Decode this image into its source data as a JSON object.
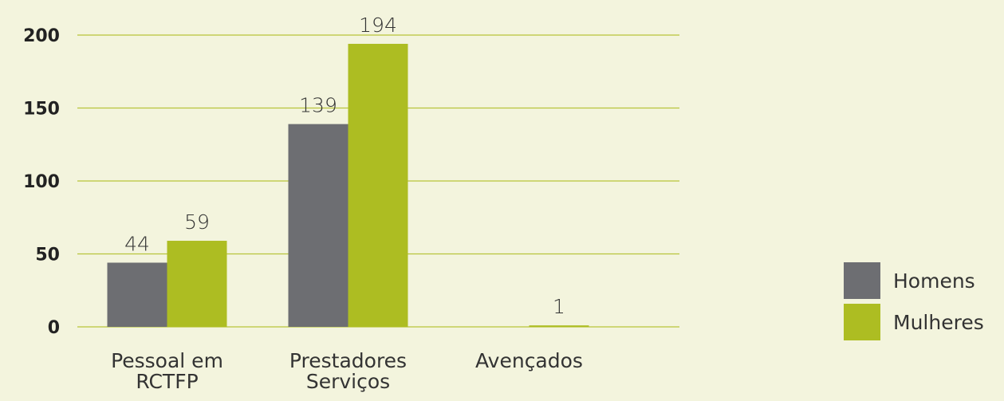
{
  "chart_data": {
    "type": "bar",
    "categories": [
      "Pessoal em\nRCTFP",
      "Prestadores\nServiços",
      "Avençados"
    ],
    "series": [
      {
        "name": "Homens",
        "color": "#6d6e72",
        "values": [
          44,
          139,
          null
        ]
      },
      {
        "name": "Mulheres",
        "color": "#adbd22",
        "values": [
          59,
          194,
          1
        ]
      }
    ],
    "ylim": [
      0,
      200
    ],
    "yticks": [
      0,
      50,
      100,
      150,
      200
    ],
    "grid": true,
    "legend": "right"
  }
}
